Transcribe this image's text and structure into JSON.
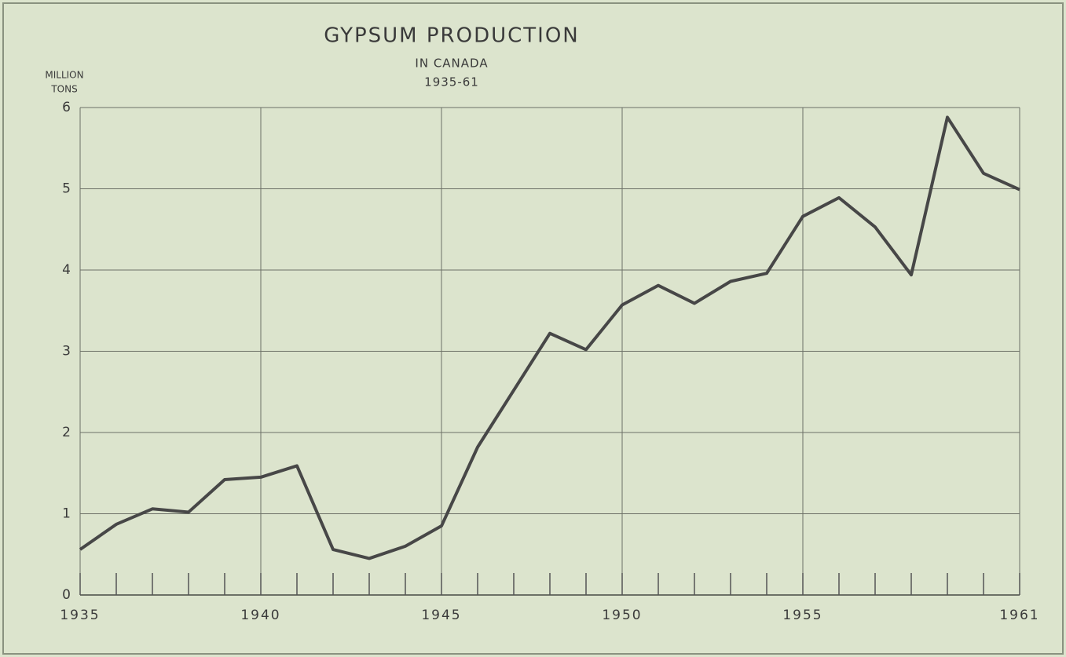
{
  "chart_data": {
    "type": "line",
    "title": "GYPSUM PRODUCTION",
    "subtitle": [
      "IN CANADA",
      "1935-61"
    ],
    "y_label": [
      "MILLION",
      "TONS"
    ],
    "x": [
      1935,
      1936,
      1937,
      1938,
      1939,
      1940,
      1941,
      1942,
      1943,
      1944,
      1945,
      1946,
      1947,
      1948,
      1949,
      1950,
      1951,
      1952,
      1953,
      1954,
      1955,
      1956,
      1957,
      1958,
      1959,
      1960,
      1961
    ],
    "series": [
      {
        "color": "#474747",
        "values": [
          0.56,
          0.87,
          1.06,
          1.02,
          1.42,
          1.45,
          1.59,
          0.56,
          0.45,
          0.6,
          0.85,
          1.82,
          2.52,
          3.22,
          3.02,
          3.57,
          3.81,
          3.59,
          3.86,
          3.96,
          4.66,
          4.89,
          4.53,
          3.94,
          5.88,
          5.19,
          4.99
        ]
      }
    ],
    "xlim": [
      1935,
      1961
    ],
    "xticks": [
      1935,
      1940,
      1945,
      1950,
      1955,
      1961
    ],
    "ylim": [
      0,
      6
    ],
    "yticks": [
      0,
      1,
      2,
      3,
      4,
      5,
      6
    ],
    "grid": true
  }
}
